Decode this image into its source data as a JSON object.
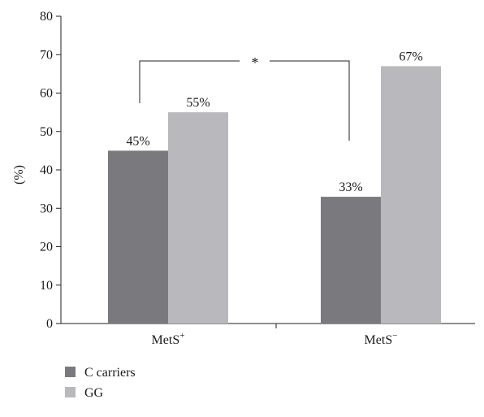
{
  "chart_data": {
    "type": "bar",
    "title": "",
    "xlabel": "",
    "ylabel": "(%)",
    "ylim": [
      0,
      80
    ],
    "yticks": [
      0,
      10,
      20,
      30,
      40,
      50,
      60,
      70,
      80
    ],
    "grid": false,
    "categories": [
      {
        "base": "MetS",
        "sup": "+"
      },
      {
        "base": "MetS",
        "sup": "−"
      }
    ],
    "series": [
      {
        "name": "C carriers",
        "color": "#7a7a7e",
        "values": [
          45,
          33
        ],
        "labels": [
          "45%",
          "33%"
        ]
      },
      {
        "name": "GG",
        "color": "#b9b9bd",
        "values": [
          55,
          67
        ],
        "labels": [
          "55%",
          "67%"
        ]
      }
    ],
    "significance": {
      "symbol": "*",
      "between": [
        "MetS+",
        "MetS−"
      ],
      "series": "C carriers"
    },
    "legend": {
      "placement": "bottom-left"
    }
  }
}
